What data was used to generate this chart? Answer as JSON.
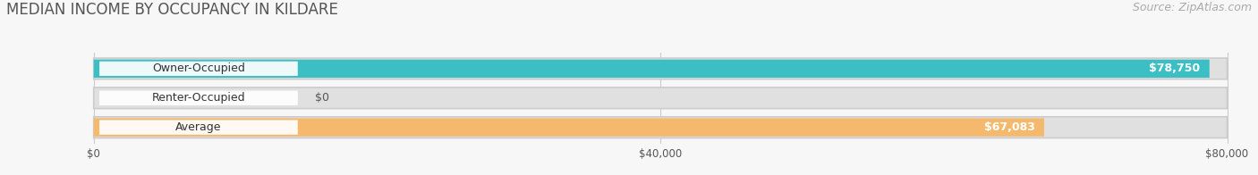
{
  "title": "MEDIAN INCOME BY OCCUPANCY IN KILDARE",
  "source": "Source: ZipAtlas.com",
  "categories": [
    "Owner-Occupied",
    "Renter-Occupied",
    "Average"
  ],
  "values": [
    78750,
    0,
    67083
  ],
  "bar_colors": [
    "#3bbfc4",
    "#c0a8d8",
    "#f5b96e"
  ],
  "bar_bg_color": "#e0e0e0",
  "value_labels": [
    "$78,750",
    "$0",
    "$67,083"
  ],
  "xlim": [
    0,
    80000
  ],
  "xticks": [
    0,
    40000,
    80000
  ],
  "xticklabels": [
    "$0",
    "$40,000",
    "$80,000"
  ],
  "title_fontsize": 12,
  "source_fontsize": 9,
  "bar_label_fontsize": 9,
  "value_fontsize": 9,
  "background_color": "#f7f7f7"
}
